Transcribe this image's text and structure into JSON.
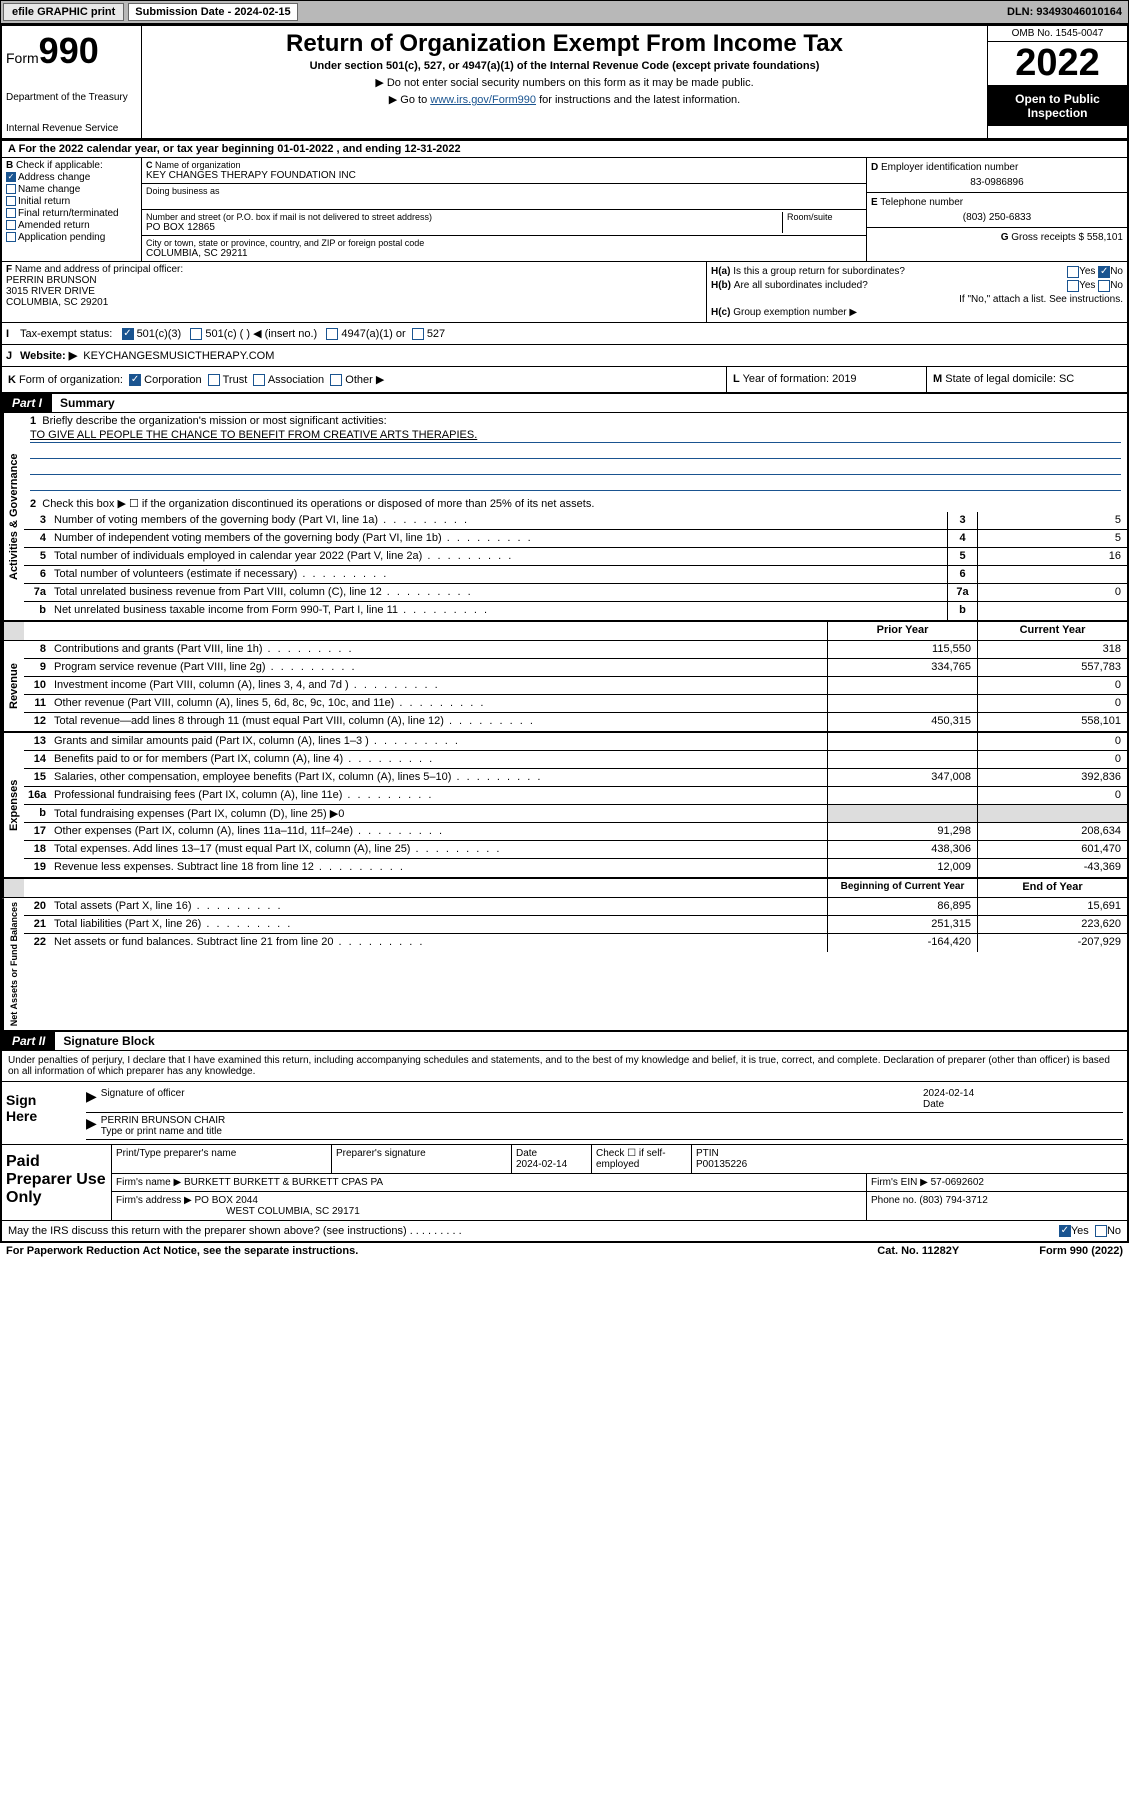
{
  "top_bar": {
    "efile": "efile GRAPHIC print",
    "sub_label": "Submission Date - 2024-02-15",
    "dln": "DLN: 93493046010164"
  },
  "header": {
    "form_prefix": "Form",
    "form_num": "990",
    "dept": "Department of the Treasury",
    "irs": "Internal Revenue Service",
    "title": "Return of Organization Exempt From Income Tax",
    "subtitle": "Under section 501(c), 527, or 4947(a)(1) of the Internal Revenue Code (except private foundations)",
    "note1": "▶ Do not enter social security numbers on this form as it may be made public.",
    "note2_pre": "▶ Go to ",
    "note2_link": "www.irs.gov/Form990",
    "note2_post": " for instructions and the latest information.",
    "omb": "OMB No. 1545-0047",
    "year": "2022",
    "open": "Open to Public Inspection"
  },
  "line_a": "For the 2022 calendar year, or tax year beginning 01-01-2022   , and ending 12-31-2022",
  "b": {
    "label": "Check if applicable:",
    "addr": "Address change",
    "name": "Name change",
    "init": "Initial return",
    "final": "Final return/terminated",
    "amend": "Amended return",
    "app": "Application pending"
  },
  "c": {
    "name_lbl": "Name of organization",
    "name": "KEY CHANGES THERAPY FOUNDATION INC",
    "dba_lbl": "Doing business as",
    "addr_lbl": "Number and street (or P.O. box if mail is not delivered to street address)",
    "room_lbl": "Room/suite",
    "addr": "PO BOX 12865",
    "city_lbl": "City or town, state or province, country, and ZIP or foreign postal code",
    "city": "COLUMBIA, SC  29211"
  },
  "d": {
    "lbl": "Employer identification number",
    "val": "83-0986896"
  },
  "e": {
    "lbl": "Telephone number",
    "val": "(803) 250-6833"
  },
  "g": {
    "lbl": "Gross receipts $",
    "val": "558,101"
  },
  "f": {
    "lbl": "Name and address of principal officer:",
    "name": "PERRIN BRUNSON",
    "addr1": "3015 RIVER DRIVE",
    "addr2": "COLUMBIA, SC  29201"
  },
  "h": {
    "a_lbl": "Is this a group return for subordinates?",
    "b_lbl": "Are all subordinates included?",
    "b_note": "If \"No,\" attach a list. See instructions.",
    "c_lbl": "Group exemption number ▶",
    "yes": "Yes",
    "no": "No"
  },
  "i": {
    "lbl": "Tax-exempt status:",
    "c3": "501(c)(3)",
    "c": "501(c) (  ) ◀ (insert no.)",
    "a1": "4947(a)(1) or",
    "s527": "527"
  },
  "j": {
    "lbl": "Website: ▶",
    "val": "KEYCHANGESMUSICTHERAPY.COM"
  },
  "k": {
    "lbl": "Form of organization:",
    "corp": "Corporation",
    "trust": "Trust",
    "assoc": "Association",
    "other": "Other ▶"
  },
  "l": {
    "lbl": "Year of formation:",
    "val": "2019"
  },
  "m": {
    "lbl": "State of legal domicile:",
    "val": "SC"
  },
  "part1": {
    "hdr": "Part I",
    "title": "Summary"
  },
  "mission": {
    "lbl": "Briefly describe the organization's mission or most significant activities:",
    "text": "TO GIVE ALL PEOPLE THE CHANCE TO BENEFIT FROM CREATIVE ARTS THERAPIES."
  },
  "line2": "Check this box ▶ ☐  if the organization discontinued its operations or disposed of more than 25% of its net assets.",
  "rows_gov": [
    {
      "n": "3",
      "d": "Number of voting members of the governing body (Part VI, line 1a)",
      "v": "5"
    },
    {
      "n": "4",
      "d": "Number of independent voting members of the governing body (Part VI, line 1b)",
      "v": "5"
    },
    {
      "n": "5",
      "d": "Total number of individuals employed in calendar year 2022 (Part V, line 2a)",
      "v": "16"
    },
    {
      "n": "6",
      "d": "Total number of volunteers (estimate if necessary)",
      "v": ""
    },
    {
      "n": "7a",
      "d": "Total unrelated business revenue from Part VIII, column (C), line 12",
      "v": "0"
    },
    {
      "n": "b",
      "d": "Net unrelated business taxable income from Form 990-T, Part I, line 11",
      "v": ""
    }
  ],
  "col_hdrs": {
    "prior": "Prior Year",
    "curr": "Current Year"
  },
  "rows_rev": [
    {
      "n": "8",
      "d": "Contributions and grants (Part VIII, line 1h)",
      "p": "115,550",
      "c": "318"
    },
    {
      "n": "9",
      "d": "Program service revenue (Part VIII, line 2g)",
      "p": "334,765",
      "c": "557,783"
    },
    {
      "n": "10",
      "d": "Investment income (Part VIII, column (A), lines 3, 4, and 7d )",
      "p": "",
      "c": "0"
    },
    {
      "n": "11",
      "d": "Other revenue (Part VIII, column (A), lines 5, 6d, 8c, 9c, 10c, and 11e)",
      "p": "",
      "c": "0"
    },
    {
      "n": "12",
      "d": "Total revenue—add lines 8 through 11 (must equal Part VIII, column (A), line 12)",
      "p": "450,315",
      "c": "558,101"
    }
  ],
  "rows_exp": [
    {
      "n": "13",
      "d": "Grants and similar amounts paid (Part IX, column (A), lines 1–3 )",
      "p": "",
      "c": "0"
    },
    {
      "n": "14",
      "d": "Benefits paid to or for members (Part IX, column (A), line 4)",
      "p": "",
      "c": "0"
    },
    {
      "n": "15",
      "d": "Salaries, other compensation, employee benefits (Part IX, column (A), lines 5–10)",
      "p": "347,008",
      "c": "392,836"
    },
    {
      "n": "16a",
      "d": "Professional fundraising fees (Part IX, column (A), line 11e)",
      "p": "",
      "c": "0"
    },
    {
      "n": "b",
      "d": "Total fundraising expenses (Part IX, column (D), line 25) ▶0",
      "grey": true
    },
    {
      "n": "17",
      "d": "Other expenses (Part IX, column (A), lines 11a–11d, 11f–24e)",
      "p": "91,298",
      "c": "208,634"
    },
    {
      "n": "18",
      "d": "Total expenses. Add lines 13–17 (must equal Part IX, column (A), line 25)",
      "p": "438,306",
      "c": "601,470"
    },
    {
      "n": "19",
      "d": "Revenue less expenses. Subtract line 18 from line 12",
      "p": "12,009",
      "c": "-43,369"
    }
  ],
  "col_hdrs2": {
    "beg": "Beginning of Current Year",
    "end": "End of Year"
  },
  "rows_net": [
    {
      "n": "20",
      "d": "Total assets (Part X, line 16)",
      "p": "86,895",
      "c": "15,691"
    },
    {
      "n": "21",
      "d": "Total liabilities (Part X, line 26)",
      "p": "251,315",
      "c": "223,620"
    },
    {
      "n": "22",
      "d": "Net assets or fund balances. Subtract line 21 from line 20",
      "p": "-164,420",
      "c": "-207,929"
    }
  ],
  "vtabs": {
    "gov": "Activities & Governance",
    "rev": "Revenue",
    "exp": "Expenses",
    "net": "Net Assets or Fund Balances"
  },
  "part2": {
    "hdr": "Part II",
    "title": "Signature Block"
  },
  "sig_text": "Under penalties of perjury, I declare that I have examined this return, including accompanying schedules and statements, and to the best of my knowledge and belief, it is true, correct, and complete. Declaration of preparer (other than officer) is based on all information of which preparer has any knowledge.",
  "sign": {
    "here": "Sign Here",
    "sig_lbl": "Signature of officer",
    "date_lbl": "Date",
    "date": "2024-02-14",
    "name": "PERRIN BRUNSON  CHAIR",
    "name_lbl": "Type or print name and title"
  },
  "prep": {
    "title": "Paid Preparer Use Only",
    "h1": "Print/Type preparer's name",
    "h2": "Preparer's signature",
    "h3": "Date",
    "h3v": "2024-02-14",
    "h4": "Check ☐ if self-employed",
    "h5": "PTIN",
    "h5v": "P00135226",
    "firm_lbl": "Firm's name    ▶",
    "firm": "BURKETT BURKETT & BURKETT CPAS PA",
    "ein_lbl": "Firm's EIN ▶",
    "ein": "57-0692602",
    "addr_lbl": "Firm's address ▶",
    "addr1": "PO BOX 2044",
    "addr2": "WEST COLUMBIA, SC  29171",
    "ph_lbl": "Phone no.",
    "ph": "(803) 794-3712"
  },
  "footer": {
    "discuss": "May the IRS discuss this return with the preparer shown above? (see instructions)",
    "yes": "Yes",
    "no": "No",
    "paperwork": "For Paperwork Reduction Act Notice, see the separate instructions.",
    "cat": "Cat. No. 11282Y",
    "form": "Form 990 (2022)"
  }
}
